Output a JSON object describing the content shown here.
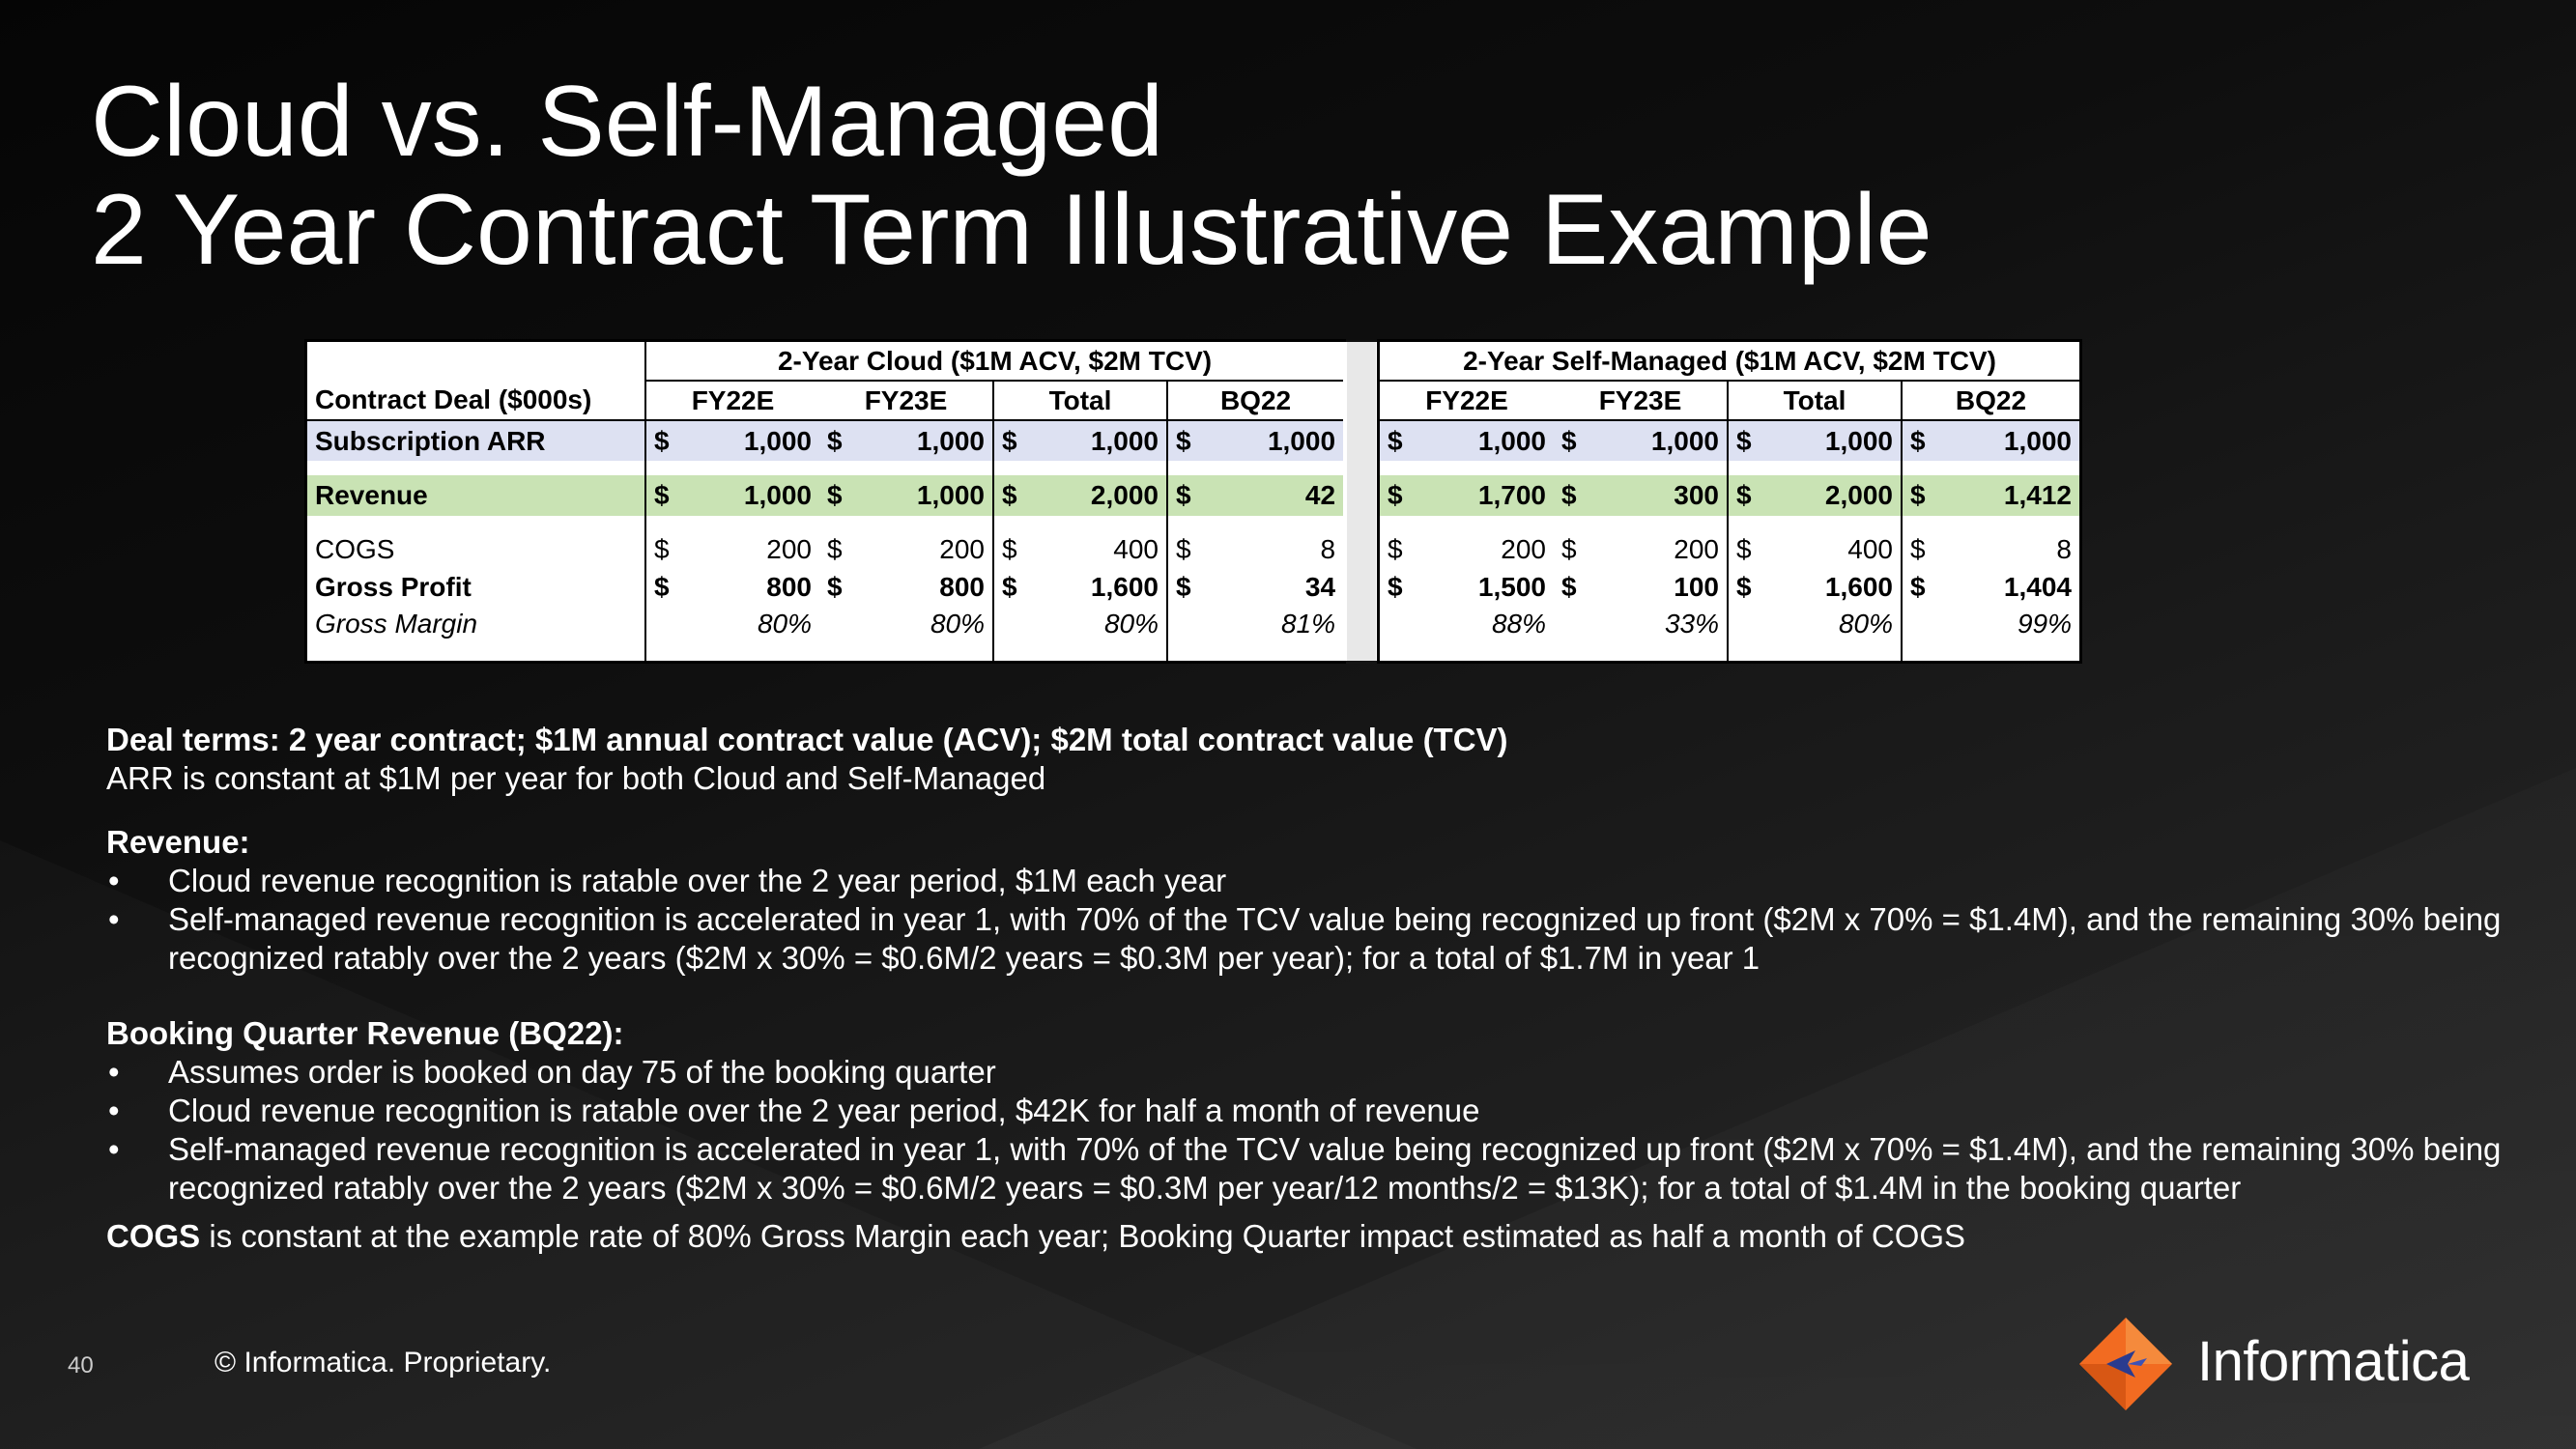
{
  "title": {
    "line1": "Cloud vs. Self-Managed",
    "line2": "2 Year Contract Term Illustrative Example"
  },
  "table": {
    "row_header": "Contract Deal ($000s)",
    "cloud_group": "2-Year Cloud ($1M ACV, $2M TCV)",
    "self_group": "2-Year Self-Managed ($1M ACV, $2M TCV)",
    "columns": [
      "FY22E",
      "FY23E",
      "Total",
      "BQ22"
    ],
    "rows": [
      {
        "label": "Subscription ARR",
        "cloud": [
          "1,000",
          "1,000",
          "1,000",
          "1,000"
        ],
        "self": [
          "1,000",
          "1,000",
          "1,000",
          "1,000"
        ],
        "currency": "$"
      },
      {
        "label": "Revenue",
        "cloud": [
          "1,000",
          "1,000",
          "2,000",
          "42"
        ],
        "self": [
          "1,700",
          "300",
          "2,000",
          "1,412"
        ],
        "currency": "$"
      },
      {
        "label": "COGS",
        "cloud": [
          "200",
          "200",
          "400",
          "8"
        ],
        "self": [
          "200",
          "200",
          "400",
          "8"
        ],
        "currency": "$"
      },
      {
        "label": "Gross Profit",
        "cloud": [
          "800",
          "800",
          "1,600",
          "34"
        ],
        "self": [
          "1,500",
          "100",
          "1,600",
          "1,404"
        ],
        "currency": "$"
      },
      {
        "label": "Gross Margin",
        "cloud": [
          "80%",
          "80%",
          "80%",
          "81%"
        ],
        "self": [
          "88%",
          "33%",
          "80%",
          "99%"
        ]
      }
    ]
  },
  "body": {
    "deal_terms_bold": "Deal terms: 2 year contract;  $1M annual contract value (ACV); $2M total contract value (TCV)",
    "deal_terms_sub": "ARR is constant at $1M per year for both Cloud and Self-Managed",
    "revenue_heading": "Revenue:",
    "revenue_bullets": [
      "Cloud revenue recognition is ratable over the 2 year period, $1M each year",
      "Self-managed revenue recognition is accelerated in year 1, with 70% of the TCV value being recognized up front ($2M x 70% = $1.4M), and the remaining 30% being recognized ratably over the 2 years ($2M x 30% = $0.6M/2 years = $0.3M per year); for a total of $1.7M in year 1"
    ],
    "bq_heading": "Booking Quarter Revenue (BQ22):",
    "bq_bullets": [
      "Assumes order is booked on day 75 of the booking quarter",
      "Cloud revenue recognition is ratable over the 2 year period, $42K for half a month of revenue",
      "Self-managed revenue recognition is accelerated in year 1, with 70% of the TCV value being recognized up front ($2M x 70% = $1.4M), and the remaining 30% being recognized ratably over the 2 years ($2M x 30% = $0.6M/2 years = $0.3M per year/12 months/2 = $13K); for a total of $1.4M in the booking quarter"
    ],
    "cogs_bold": "COGS",
    "cogs_rest": " is constant at the example rate of 80% Gross Margin each year; Booking Quarter impact estimated as half a month of COGS"
  },
  "footer": {
    "page_number": "40",
    "copyright": "© Informatica. Proprietary.",
    "logo_text": "Informatica",
    "logo_icon": "informatica-diamond-logo"
  },
  "colors": {
    "arr_row": "#dde1f2",
    "revenue_row": "#c9e3b4",
    "logo_orange": "#f26b21",
    "logo_blue": "#2a3b8f"
  }
}
